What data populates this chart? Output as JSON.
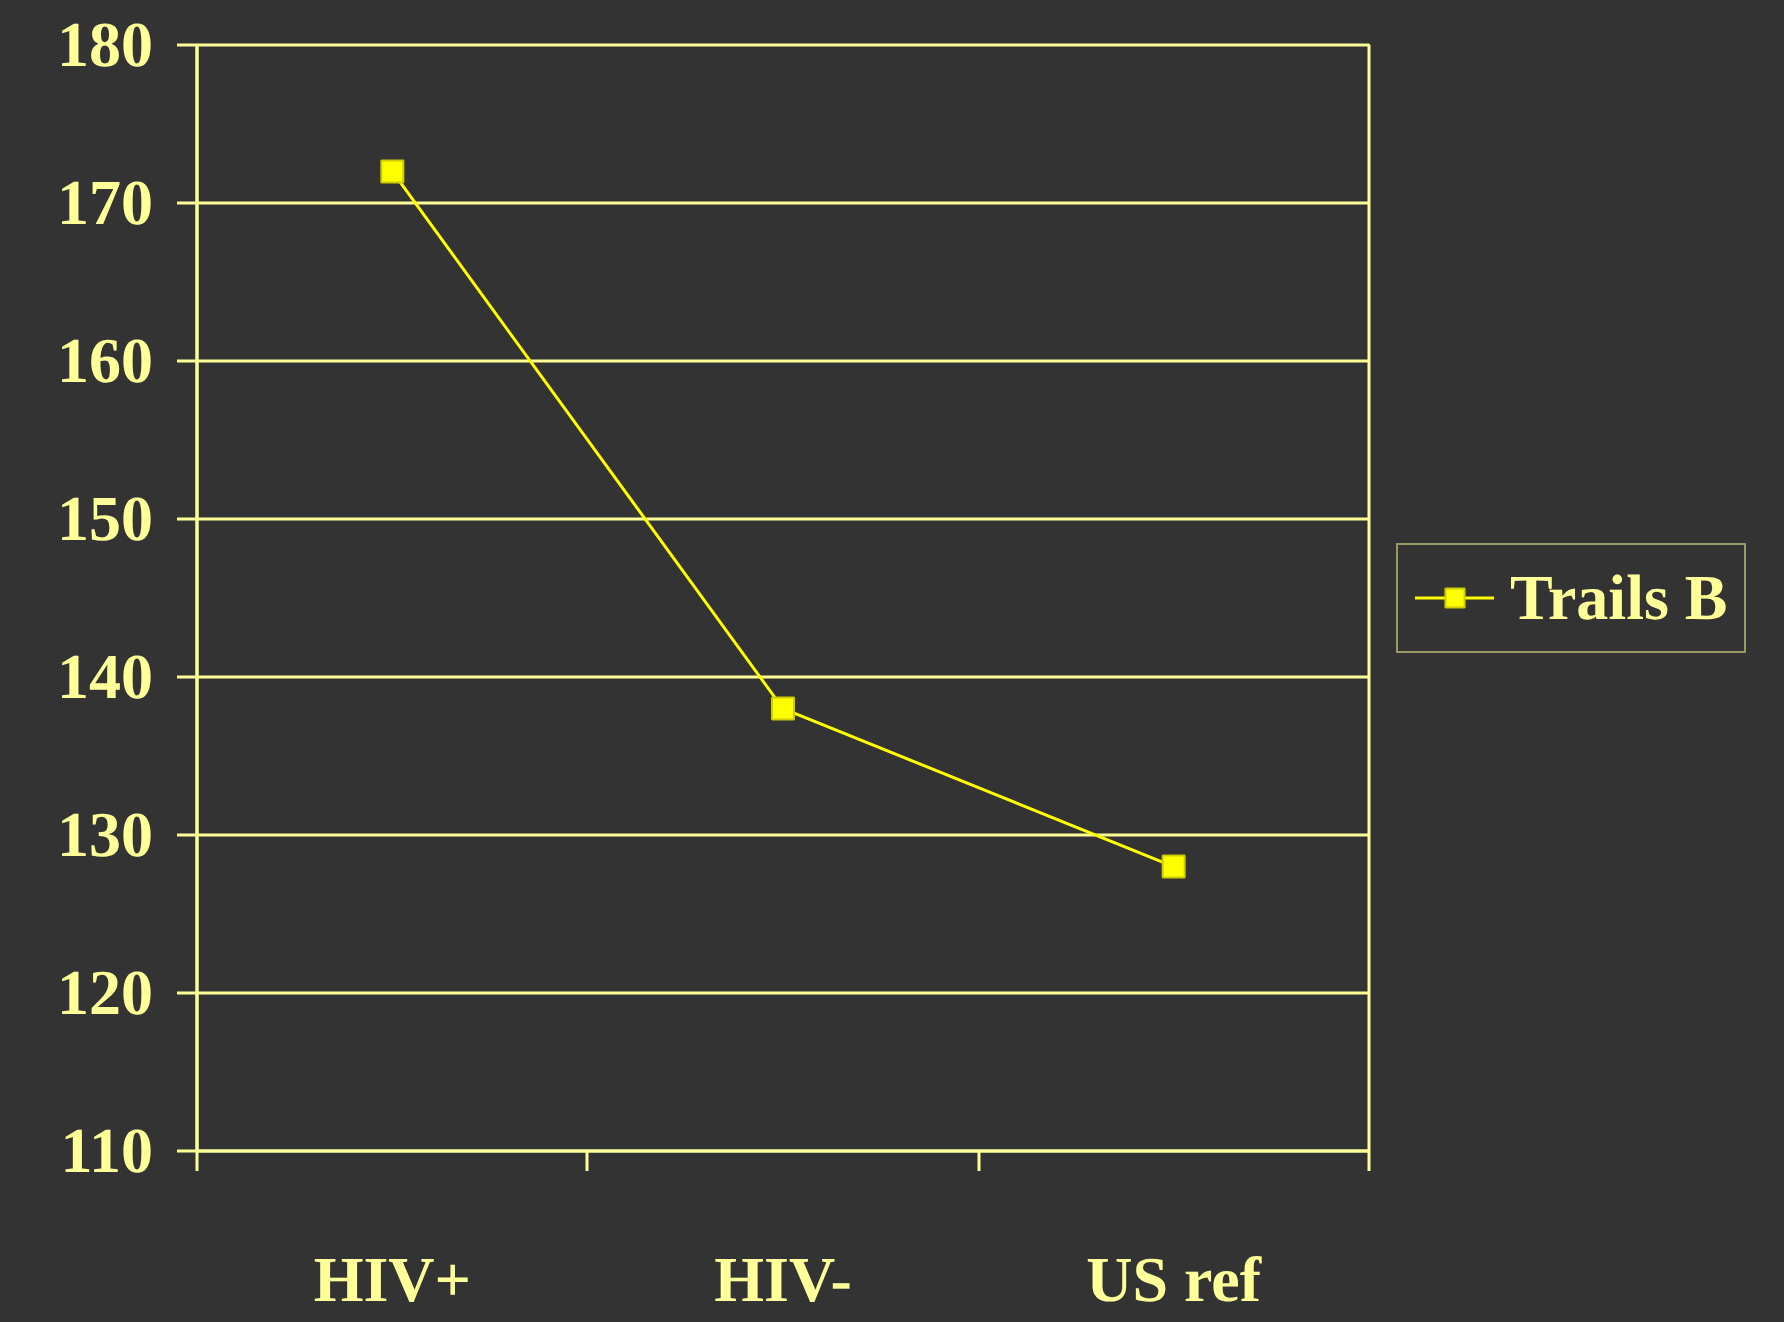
{
  "chart_data": {
    "type": "line",
    "categories": [
      "HIV+",
      "HIV-",
      "US ref"
    ],
    "series": [
      {
        "name": "Trails B",
        "color": "#ffff00",
        "values": [
          172,
          138,
          128
        ]
      }
    ],
    "ylim": [
      110,
      180
    ],
    "yticks": [
      110,
      120,
      130,
      140,
      150,
      160,
      170,
      180
    ],
    "grid": "y",
    "legend": "right",
    "marker": "square",
    "line_style": "solid"
  }
}
